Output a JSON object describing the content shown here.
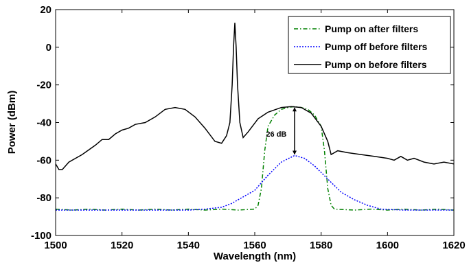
{
  "chart_data": {
    "type": "line",
    "title": "",
    "xlabel": "Wavelength (nm)",
    "ylabel": "Power (dBm)",
    "xlim": [
      1500,
      1620
    ],
    "ylim": [
      -100,
      20
    ],
    "xticks": [
      1500,
      1520,
      1540,
      1560,
      1580,
      1600,
      1620
    ],
    "yticks": [
      20,
      0,
      -20,
      -40,
      -60,
      -80,
      -100
    ],
    "grid": false,
    "legend_position": "top-right",
    "series": [
      {
        "name": "Pump on after filters",
        "color": "#008000",
        "style": "dash-dot",
        "points": [
          [
            1500,
            -86
          ],
          [
            1505,
            -86.5
          ],
          [
            1510,
            -86
          ],
          [
            1515,
            -86.5
          ],
          [
            1520,
            -86
          ],
          [
            1525,
            -86.5
          ],
          [
            1530,
            -86
          ],
          [
            1535,
            -86.5
          ],
          [
            1540,
            -86
          ],
          [
            1545,
            -86.5
          ],
          [
            1550,
            -86
          ],
          [
            1555,
            -86.5
          ],
          [
            1560,
            -86
          ],
          [
            1561,
            -84
          ],
          [
            1562,
            -75
          ],
          [
            1563,
            -55
          ],
          [
            1564,
            -42
          ],
          [
            1566,
            -36
          ],
          [
            1568,
            -33
          ],
          [
            1570,
            -32
          ],
          [
            1572,
            -31.5
          ],
          [
            1574,
            -32
          ],
          [
            1576,
            -33
          ],
          [
            1578,
            -36
          ],
          [
            1580,
            -42
          ],
          [
            1581,
            -55
          ],
          [
            1582,
            -75
          ],
          [
            1583,
            -84
          ],
          [
            1584,
            -86
          ],
          [
            1590,
            -86.5
          ],
          [
            1595,
            -86
          ],
          [
            1600,
            -86.5
          ],
          [
            1605,
            -86
          ],
          [
            1610,
            -86.5
          ],
          [
            1615,
            -86
          ],
          [
            1620,
            -86.5
          ]
        ]
      },
      {
        "name": "Pump off before filters",
        "color": "#0000ff",
        "style": "dotted",
        "points": [
          [
            1500,
            -86.5
          ],
          [
            1510,
            -86.5
          ],
          [
            1520,
            -86.5
          ],
          [
            1530,
            -86.5
          ],
          [
            1540,
            -86.5
          ],
          [
            1545,
            -86
          ],
          [
            1550,
            -85
          ],
          [
            1553,
            -83
          ],
          [
            1556,
            -80
          ],
          [
            1560,
            -76
          ],
          [
            1564,
            -68
          ],
          [
            1568,
            -61
          ],
          [
            1572,
            -57.5
          ],
          [
            1575,
            -59
          ],
          [
            1578,
            -63
          ],
          [
            1582,
            -70
          ],
          [
            1586,
            -77
          ],
          [
            1590,
            -81
          ],
          [
            1594,
            -84
          ],
          [
            1598,
            -86
          ],
          [
            1605,
            -86.5
          ],
          [
            1612,
            -86.5
          ],
          [
            1620,
            -86.5
          ]
        ]
      },
      {
        "name": "Pump on before filters",
        "color": "#000000",
        "style": "solid",
        "points": [
          [
            1500,
            -62
          ],
          [
            1501,
            -65
          ],
          [
            1502,
            -65
          ],
          [
            1504,
            -61
          ],
          [
            1508,
            -57
          ],
          [
            1512,
            -52
          ],
          [
            1514,
            -49
          ],
          [
            1516,
            -49
          ],
          [
            1518,
            -46
          ],
          [
            1520,
            -44
          ],
          [
            1522,
            -43
          ],
          [
            1524,
            -41
          ],
          [
            1527,
            -40
          ],
          [
            1530,
            -37
          ],
          [
            1533,
            -33
          ],
          [
            1536,
            -32
          ],
          [
            1539,
            -33
          ],
          [
            1542,
            -37
          ],
          [
            1545,
            -43
          ],
          [
            1548,
            -50
          ],
          [
            1550,
            -51
          ],
          [
            1551.5,
            -47
          ],
          [
            1552.5,
            -40
          ],
          [
            1553.2,
            -20
          ],
          [
            1553.6,
            0
          ],
          [
            1554,
            13
          ],
          [
            1554.4,
            0
          ],
          [
            1554.8,
            -20
          ],
          [
            1555.5,
            -40
          ],
          [
            1556.5,
            -48
          ],
          [
            1558,
            -45
          ],
          [
            1561,
            -38
          ],
          [
            1564,
            -34.5
          ],
          [
            1568,
            -32
          ],
          [
            1571,
            -31.5
          ],
          [
            1574,
            -32
          ],
          [
            1577,
            -35
          ],
          [
            1580,
            -42
          ],
          [
            1582,
            -50
          ],
          [
            1583,
            -57
          ],
          [
            1585,
            -55
          ],
          [
            1588,
            -56
          ],
          [
            1592,
            -57
          ],
          [
            1596,
            -58
          ],
          [
            1600,
            -59
          ],
          [
            1602,
            -60
          ],
          [
            1604,
            -58
          ],
          [
            1606,
            -60
          ],
          [
            1608,
            -59
          ],
          [
            1611,
            -61
          ],
          [
            1614,
            -62
          ],
          [
            1617,
            -61
          ],
          [
            1620,
            -62
          ]
        ]
      }
    ],
    "annotations": [
      {
        "text": "26 dB",
        "x": 1566.5,
        "y": -46,
        "arrow_x": 1572,
        "arrow_from_y": -31.5,
        "arrow_to_y": -57.5
      }
    ]
  }
}
